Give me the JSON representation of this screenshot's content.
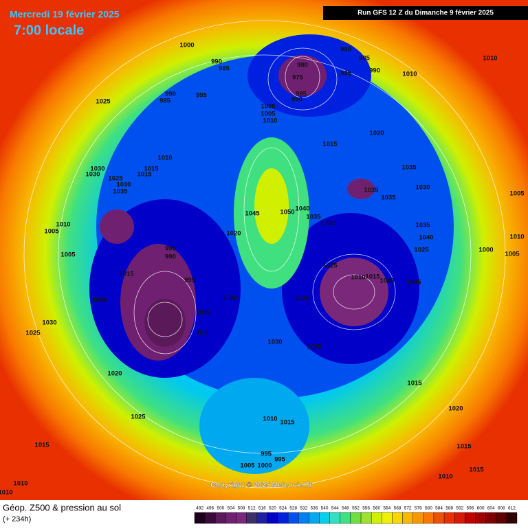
{
  "header": {
    "title": "Mercredi 19 février 2025",
    "time": "7:00 locale",
    "run": "Run GFS 12 Z du Dimanche 9 février 2025"
  },
  "copyright": "Copyright © 2025 Meteociel.fr",
  "footer": {
    "title": "Géop. Z500 & pression au sol",
    "lead": "(+ 234h)"
  },
  "scale": {
    "ticks": [
      492,
      496,
      500,
      504,
      508,
      512,
      516,
      520,
      524,
      528,
      532,
      536,
      540,
      544,
      548,
      552,
      556,
      560,
      564,
      568,
      572,
      576,
      580,
      584,
      588,
      592,
      596,
      600,
      604,
      608,
      612
    ],
    "colors": [
      "#1a001a",
      "#3a0a3a",
      "#5a1a5a",
      "#702070",
      "#7a287a",
      "#40306a",
      "#2020a0",
      "#0000c8",
      "#0020e0",
      "#0050f0",
      "#0080f0",
      "#00a8f0",
      "#00d0e8",
      "#30e0c0",
      "#40e080",
      "#70e040",
      "#a0e030",
      "#d0f000",
      "#f0f000",
      "#f8d800",
      "#f8b800",
      "#f89800",
      "#f87800",
      "#f05000",
      "#e83000",
      "#d81800",
      "#c00000",
      "#a00000",
      "#800000",
      "#600000",
      "#300000"
    ]
  },
  "pressure_labels": [
    1000,
    990,
    985,
    990,
    985,
    995,
    1025,
    980,
    975,
    985,
    990,
    995,
    990,
    985,
    990,
    1010,
    1010,
    1000,
    1005,
    1010,
    1015,
    1020,
    1010,
    1015,
    1015,
    1030,
    1030,
    1025,
    1030,
    1035,
    1035,
    1035,
    1035,
    1030,
    1045,
    1050,
    1040,
    1035,
    1030,
    1020,
    1010,
    1005,
    1035,
    1040,
    1025,
    1005,
    995,
    990,
    1015,
    995,
    1025,
    1010,
    1015,
    1020,
    1035,
    1000,
    1005,
    1030,
    1030,
    1020,
    1010,
    995,
    1030,
    1025,
    1030,
    1025,
    1020,
    1015,
    1025,
    1020,
    1010,
    1015,
    1015,
    1015,
    995,
    995,
    1005,
    1000,
    1015,
    1010,
    1010,
    1010,
    1010,
    1005
  ]
}
